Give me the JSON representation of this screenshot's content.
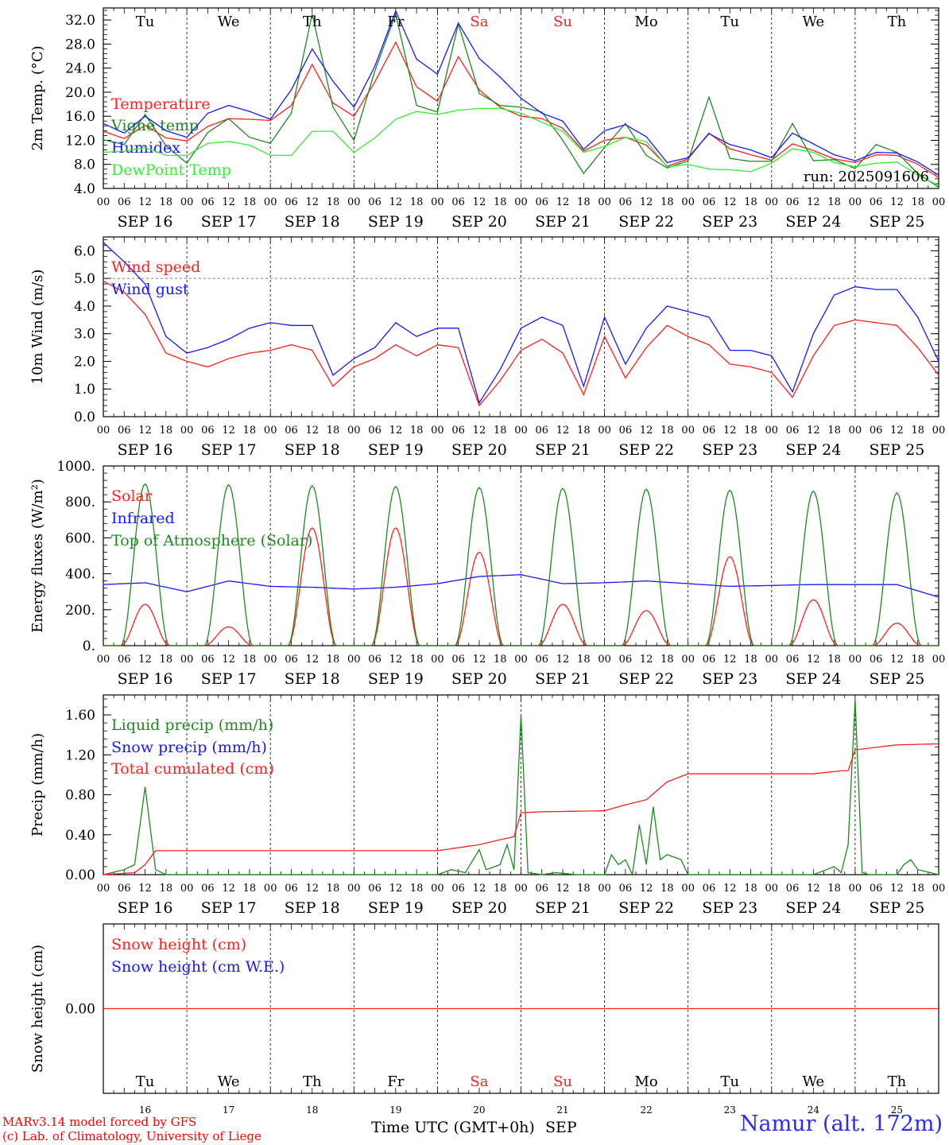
{
  "meta": {
    "run_label": "run: 2025091606",
    "credits": [
      "MARv3.14 model forced by GFS",
      "(c) Lab. of Climatology, University of Liege"
    ],
    "station": "Namur (alt. 172m)",
    "bottom_axis_label": "Time UTC (GMT+0h)",
    "bottom_month": "SEP"
  },
  "colors": {
    "red": "#ff2020",
    "green": "#1e8a1e",
    "blue": "#1818ff",
    "light_green": "#33ee33",
    "day_weekend": "#ff2020",
    "axis": "#000000"
  },
  "days": {
    "weekday_labels": [
      "Tu",
      "We",
      "Th",
      "Fr",
      "Sa",
      "Su",
      "Mo",
      "Tu",
      "We",
      "Th"
    ],
    "weekend_index": [
      4,
      5
    ],
    "date_labels": [
      "SEP 16",
      "SEP 17",
      "SEP 18",
      "SEP 19",
      "SEP 20",
      "SEP 21",
      "SEP 22",
      "SEP 23",
      "SEP 24",
      "SEP 25"
    ],
    "day_numbers": [
      "16",
      "17",
      "18",
      "19",
      "20",
      "21",
      "22",
      "23",
      "24",
      "25"
    ],
    "hour_ticks": [
      "00",
      "06",
      "12",
      "18"
    ],
    "final_hour": "00"
  },
  "chart_data": [
    {
      "type": "line",
      "id": "temperature",
      "ylabel": "2m Temp. (°C)",
      "ylim": [
        4,
        34
      ],
      "yticks": [
        "4.0",
        "8.0",
        "12.0",
        "16.0",
        "20.0",
        "24.0",
        "28.0",
        "32.0"
      ],
      "x_hours": [
        0,
        6,
        12,
        18,
        24,
        30,
        36,
        42,
        48,
        54,
        60,
        66,
        72,
        78,
        84,
        90,
        96,
        102,
        108,
        114,
        120,
        126,
        132,
        138,
        144,
        150,
        156,
        162,
        168,
        174,
        180,
        186,
        192,
        198,
        204,
        210,
        216,
        222,
        228,
        234,
        240
      ],
      "series": [
        {
          "name": "Temperature",
          "color": "#ff2020",
          "values": [
            13.5,
            12.3,
            14.5,
            12.4,
            11.9,
            14.3,
            15.6,
            15.5,
            15.3,
            17.8,
            24.6,
            18.2,
            16,
            21.7,
            28.3,
            20.9,
            18.5,
            25.9,
            20.4,
            17.5,
            16,
            15.6,
            14,
            10.2,
            12,
            12.5,
            11.2,
            7.7,
            8.9,
            13.2,
            10.6,
            9.6,
            8.7,
            11.4,
            10.3,
            8.9,
            8.3,
            9.6,
            9.5,
            8,
            5.8
          ]
        },
        {
          "name": "Vigne temp",
          "color": "#1e8a1e",
          "values": [
            12.1,
            11.3,
            16.3,
            11.1,
            8.2,
            13.3,
            15.6,
            12.5,
            11.5,
            16.5,
            33,
            17.5,
            12,
            23.5,
            33,
            17.8,
            16.7,
            31.3,
            19.8,
            17.8,
            17.5,
            16.7,
            12,
            6.5,
            10.8,
            14.8,
            9.5,
            7.4,
            8.6,
            19.2,
            9,
            8.5,
            8.5,
            14.8,
            8.6,
            8.8,
            7.3,
            11.3,
            10,
            6.5,
            4.2
          ]
        },
        {
          "name": "Humidex",
          "color": "#1818ff",
          "values": [
            14.8,
            13.2,
            16,
            13.6,
            12.5,
            16.5,
            17.8,
            16.8,
            15.5,
            20.4,
            27.2,
            21.8,
            17.5,
            24.3,
            33.5,
            25.5,
            23,
            31.5,
            25.6,
            22.5,
            19,
            16.5,
            15.2,
            10.5,
            13.6,
            14.6,
            12.6,
            8.3,
            9.1,
            13.1,
            11.3,
            10.4,
            9.1,
            13.2,
            11.4,
            9.6,
            8.6,
            10,
            9.9,
            8.4,
            6.2
          ]
        },
        {
          "name": "DewPoint Temp",
          "color": "#33ee33",
          "values": [
            10,
            10.2,
            10.8,
            9.5,
            9.5,
            11.5,
            11.8,
            11.2,
            9.5,
            9.5,
            13.5,
            13.5,
            10,
            12.4,
            15.5,
            16.8,
            16.3,
            17,
            17.3,
            17.3,
            16.5,
            15,
            13.5,
            10,
            11,
            12.5,
            11.8,
            7.6,
            8,
            7.2,
            7.1,
            6.8,
            8.2,
            10.6,
            10,
            8.3,
            7.6,
            8.2,
            8.4,
            6.2,
            4.5
          ]
        }
      ]
    },
    {
      "type": "line",
      "id": "wind",
      "ylabel": "10m Wind (m/s)",
      "ylim": [
        0,
        6.5
      ],
      "ref_line": 5,
      "yticks": [
        "0.0",
        "1.0",
        "2.0",
        "3.0",
        "4.0",
        "5.0",
        "6.0"
      ],
      "x_hours": [
        0,
        6,
        12,
        18,
        24,
        30,
        36,
        42,
        48,
        54,
        60,
        66,
        72,
        78,
        84,
        90,
        96,
        102,
        108,
        114,
        120,
        126,
        132,
        138,
        144,
        150,
        156,
        162,
        168,
        174,
        180,
        186,
        192,
        198,
        204,
        210,
        216,
        222,
        228,
        234,
        240
      ],
      "series": [
        {
          "name": "Wind speed",
          "color": "#ff2020",
          "values": [
            4.9,
            4.5,
            3.7,
            2.3,
            2,
            1.8,
            2.1,
            2.3,
            2.4,
            2.6,
            2.4,
            1.1,
            1.8,
            2.1,
            2.6,
            2.2,
            2.6,
            2.5,
            0.4,
            1.3,
            2.4,
            2.8,
            2.3,
            0.8,
            2.9,
            1.4,
            2.5,
            3.3,
            2.9,
            2.6,
            1.9,
            1.8,
            1.6,
            0.7,
            2.2,
            3.3,
            3.5,
            3.4,
            3.3,
            2.5,
            1.5
          ]
        },
        {
          "name": "Wind gust",
          "color": "#1818ff",
          "values": [
            6.3,
            5.6,
            4.8,
            2.9,
            2.3,
            2.5,
            2.8,
            3.2,
            3.4,
            3.3,
            3.3,
            1.5,
            2.1,
            2.5,
            3.4,
            2.9,
            3.2,
            3.2,
            0.5,
            1.7,
            3.2,
            3.6,
            3.3,
            1.1,
            3.6,
            1.9,
            3.2,
            4,
            3.8,
            3.6,
            2.4,
            2.4,
            2.2,
            0.9,
            3,
            4.4,
            4.7,
            4.6,
            4.6,
            3.6,
            2
          ]
        }
      ]
    },
    {
      "type": "line",
      "id": "energy",
      "ylabel": "Energy fluxes (W/m²)",
      "ylim": [
        0,
        1000
      ],
      "yticks": [
        "0.",
        "200.",
        "400.",
        "600.",
        "800.",
        "1000."
      ],
      "series": [
        {
          "name": "Solar",
          "color": "#ff2020",
          "daily_peaks": [
            230,
            105,
            655,
            655,
            520,
            230,
            195,
            495,
            255,
            125
          ]
        },
        {
          "name": "Infrared",
          "color": "#1818ff",
          "x_hours": [
            0,
            12,
            24,
            36,
            48,
            60,
            72,
            84,
            96,
            108,
            120,
            132,
            144,
            156,
            168,
            180,
            192,
            204,
            216,
            228,
            240
          ],
          "values": [
            340,
            350,
            300,
            360,
            330,
            325,
            315,
            325,
            345,
            385,
            395,
            345,
            350,
            360,
            345,
            330,
            335,
            340,
            340,
            340,
            270
          ]
        },
        {
          "name": "Top of Atmosphere (Solar)",
          "color": "#1e8a1e",
          "daily_peaks": [
            900,
            895,
            890,
            885,
            880,
            875,
            870,
            865,
            860,
            850
          ]
        }
      ]
    },
    {
      "type": "line",
      "id": "precip",
      "ylabel": "Precip (mm/h)",
      "ylim": [
        0,
        1.8
      ],
      "yticks": [
        "0.00",
        "0.40",
        "0.80",
        "1.20",
        "1.60"
      ],
      "series": [
        {
          "name": "Liquid precip (mm/h)",
          "color": "#1e8a1e",
          "x_hours": [
            0,
            6,
            9,
            12,
            15,
            18,
            24,
            96,
            100,
            104,
            108,
            110,
            114,
            116,
            118,
            120,
            122,
            124,
            126,
            130,
            136,
            144,
            146,
            148,
            150,
            152,
            154,
            156,
            158,
            160,
            162,
            166,
            168,
            204,
            210,
            212,
            214,
            216,
            218,
            220,
            228,
            230,
            232,
            234,
            240
          ],
          "values": [
            0,
            0.05,
            0.1,
            0.88,
            0.05,
            0,
            0,
            0,
            0.05,
            0.02,
            0.25,
            0.05,
            0.1,
            0.3,
            0.05,
            1.6,
            0.02,
            0.01,
            0,
            0.02,
            0,
            0,
            0.2,
            0.1,
            0.15,
            0,
            0.5,
            0.1,
            0.68,
            0.15,
            0.2,
            0.15,
            0,
            0,
            0.08,
            0.02,
            0.3,
            1.75,
            0.02,
            0,
            0,
            0.1,
            0.15,
            0.05,
            0
          ]
        },
        {
          "name": "Snow precip (mm/h)",
          "color": "#1818ff",
          "values": []
        },
        {
          "name": "Total cumulated (cm)",
          "color": "#ff2020",
          "x_hours": [
            0,
            9,
            12,
            15,
            96,
            108,
            114,
            118,
            120,
            126,
            144,
            150,
            156,
            162,
            168,
            204,
            212,
            214,
            216,
            228,
            240
          ],
          "values": [
            0,
            0.02,
            0.1,
            0.24,
            0.24,
            0.3,
            0.35,
            0.38,
            0.62,
            0.63,
            0.64,
            0.7,
            0.75,
            0.93,
            1.01,
            1.01,
            1.04,
            1.04,
            1.25,
            1.3,
            1.31
          ]
        }
      ]
    },
    {
      "type": "line",
      "id": "snow",
      "ylabel": "Snow height (cm)",
      "ylim": [
        -1,
        1
      ],
      "yticks": [
        "0.00"
      ],
      "series": [
        {
          "name": "Snow height (cm)",
          "color": "#ff2020",
          "values": [
            0,
            0
          ]
        },
        {
          "name": "Snow height (cm W.E.)",
          "color": "#1818ff",
          "values": []
        }
      ]
    }
  ]
}
